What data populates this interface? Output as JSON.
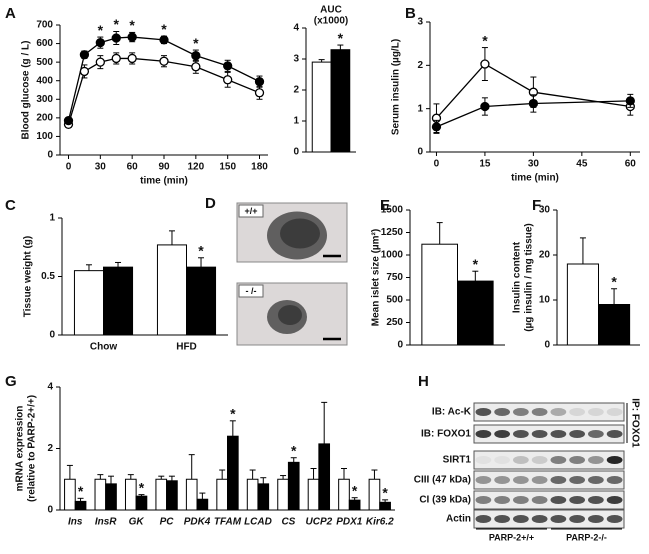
{
  "chart_data": [
    {
      "type": "line",
      "label": "A",
      "xlabel": "time (min)",
      "ylabel": "Blood glucose (g / L)",
      "x": [
        0,
        15,
        30,
        45,
        60,
        90,
        120,
        150,
        180
      ],
      "xlim": [
        -8,
        188
      ],
      "xticks": [
        0,
        30,
        60,
        90,
        120,
        150,
        180
      ],
      "ylim": [
        0,
        700
      ],
      "yticks": [
        0,
        100,
        200,
        300,
        400,
        500,
        600,
        700
      ],
      "series": [
        {
          "color": "#ffffff",
          "values": [
            165,
            450,
            500,
            520,
            520,
            505,
            475,
            405,
            335
          ],
          "errors": [
            15,
            35,
            35,
            30,
            30,
            30,
            35,
            40,
            35
          ]
        },
        {
          "color": "#000000",
          "values": [
            185,
            540,
            605,
            630,
            635,
            620,
            535,
            480,
            395
          ],
          "errors": [
            15,
            20,
            30,
            35,
            25,
            20,
            30,
            30,
            30
          ],
          "significance": [
            null,
            null,
            "*",
            "*",
            "*",
            "*",
            "*",
            null,
            null
          ]
        }
      ]
    },
    {
      "type": "bar",
      "title": [
        "AUC",
        "(x1000)"
      ],
      "categories": [
        null
      ],
      "ylim": [
        0,
        4
      ],
      "yticks": [
        0,
        1,
        2,
        3,
        4
      ],
      "series": [
        {
          "color": "#ffffff",
          "values": [
            2.9
          ],
          "errors": [
            0.08
          ]
        },
        {
          "color": "#000000",
          "values": [
            3.3
          ],
          "errors": [
            0.15
          ],
          "significance": [
            "*"
          ]
        }
      ]
    },
    {
      "type": "line",
      "label": "B",
      "xlabel": "time (min)",
      "ylabel": "Serum insulin (µg/L)",
      "x": [
        0,
        15,
        30,
        60
      ],
      "xlim": [
        -2,
        63
      ],
      "xticks": [
        0,
        15,
        30,
        45,
        60
      ],
      "ylim": [
        0,
        3
      ],
      "yticks": [
        0,
        1,
        2,
        3
      ],
      "series": [
        {
          "color": "#ffffff",
          "values": [
            0.78,
            2.03,
            1.38,
            1.05
          ],
          "errors": [
            0.33,
            0.38,
            0.35,
            0.2
          ],
          "significance": [
            null,
            "*",
            null,
            null
          ]
        },
        {
          "color": "#000000",
          "values": [
            0.58,
            1.05,
            1.12,
            1.18
          ],
          "errors": [
            0.15,
            0.2,
            0.2,
            0.15
          ]
        }
      ]
    },
    {
      "type": "bar",
      "label": "C",
      "ylabel": "Tissue weight (g)",
      "categories": [
        "Chow",
        "HFD"
      ],
      "ylim": [
        0,
        1
      ],
      "yticks": [
        0,
        0.5,
        1
      ],
      "series": [
        {
          "color": "#ffffff",
          "values": [
            0.55,
            0.77
          ],
          "errors": [
            0.05,
            0.12
          ]
        },
        {
          "color": "#000000",
          "values": [
            0.58,
            0.58
          ],
          "errors": [
            0.04,
            0.08
          ],
          "significance": [
            null,
            "*"
          ]
        }
      ]
    },
    {
      "type": "image",
      "label": "D",
      "captions": [
        "+/+",
        "- /-"
      ]
    },
    {
      "type": "bar",
      "label": "E",
      "ylabel": "Mean islet size (µm²)",
      "categories": [
        null
      ],
      "ylim": [
        0,
        1500
      ],
      "yticks": [
        0,
        250,
        500,
        750,
        1000,
        1250,
        1500
      ],
      "series": [
        {
          "color": "#ffffff",
          "values": [
            1120
          ],
          "errors": [
            240
          ]
        },
        {
          "color": "#000000",
          "values": [
            710
          ],
          "errors": [
            110
          ],
          "significance": [
            "*"
          ]
        }
      ]
    },
    {
      "type": "bar",
      "label": "F",
      "ylabel": [
        "Insulin content",
        "(µg insulin / mg tissue)"
      ],
      "categories": [
        null
      ],
      "ylim": [
        0,
        30
      ],
      "yticks": [
        0,
        10,
        20,
        30
      ],
      "series": [
        {
          "color": "#ffffff",
          "values": [
            18
          ],
          "errors": [
            5.8
          ]
        },
        {
          "color": "#000000",
          "values": [
            9
          ],
          "errors": [
            3.5
          ],
          "significance": [
            "*"
          ]
        }
      ]
    },
    {
      "type": "bar",
      "label": "G",
      "ylabel": [
        "mRNA expression",
        "(relative to PARP-2+/+)"
      ],
      "category_style": "italic",
      "categories": [
        "Ins",
        "InsR",
        "GK",
        "PC",
        "PDK4",
        "TFAM",
        "LCAD",
        "CS",
        "UCP2",
        "PDX1",
        "Kir6.2"
      ],
      "ylim": [
        0,
        4
      ],
      "yticks": [
        0,
        2,
        4
      ],
      "series": [
        {
          "color": "#ffffff",
          "values": [
            1,
            1,
            1,
            1,
            1,
            1,
            1,
            1,
            1,
            1,
            1
          ],
          "errors": [
            0.45,
            0.15,
            0.15,
            0.1,
            0.8,
            0.3,
            0.3,
            0.12,
            0.35,
            0.35,
            0.3
          ]
        },
        {
          "color": "#000000",
          "values": [
            0.28,
            0.85,
            0.45,
            0.95,
            0.35,
            2.4,
            0.85,
            1.55,
            2.15,
            0.32,
            0.25
          ],
          "errors": [
            0.1,
            0.25,
            0.05,
            0.15,
            0.2,
            0.5,
            0.2,
            0.15,
            1.35,
            0.08,
            0.08
          ],
          "significance": [
            "*",
            null,
            "*",
            null,
            null,
            "*",
            null,
            "*",
            null,
            "*",
            "*"
          ]
        }
      ]
    },
    {
      "type": "blot",
      "label": "H",
      "rows": [
        "IB: Ac-K",
        "IB: FOXO1",
        "SIRT1",
        "CIII (47 kDa)",
        "CI (39 kDa)",
        "Actin"
      ],
      "ip_label": "IP: FOXO1",
      "groups": [
        "PARP-2+/+",
        "PARP-2-/-"
      ]
    }
  ]
}
